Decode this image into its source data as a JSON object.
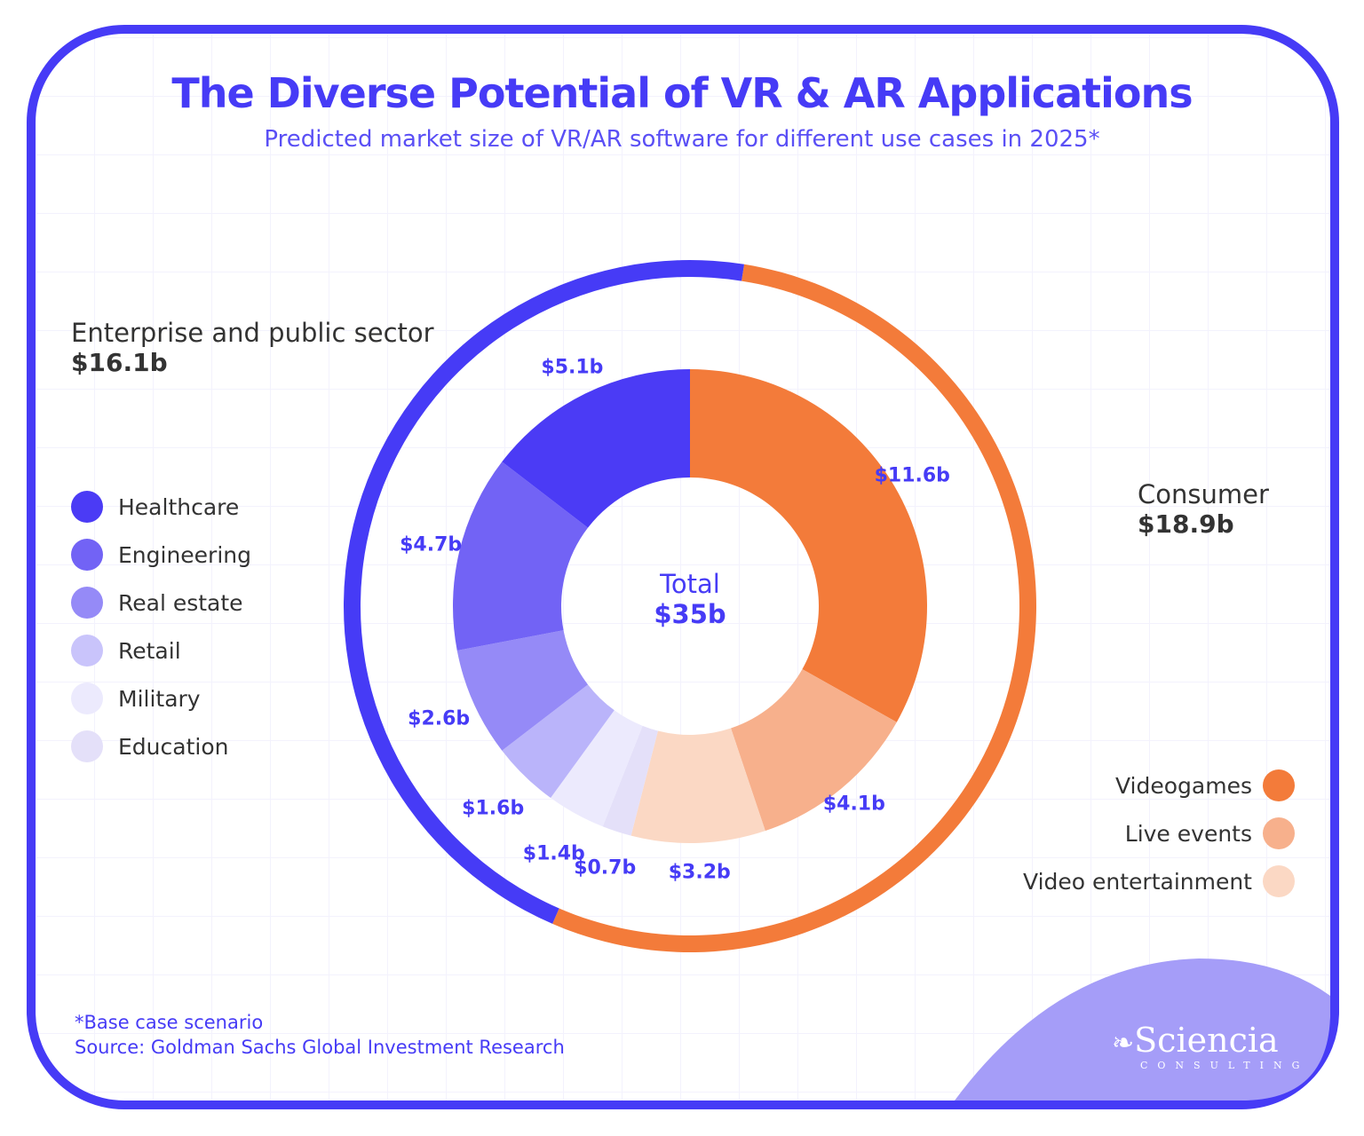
{
  "title": "The Diverse Potential of VR & AR Applications",
  "subtitle": "Predicted market size of VR/AR software for different use cases in 2025*",
  "groups": {
    "enterprise": {
      "label": "Enterprise and public sector",
      "value": "$16.1b",
      "color": "#463BF6"
    },
    "consumer": {
      "label": "Consumer",
      "value": "$18.9b",
      "color": "#F37B3A"
    }
  },
  "center": {
    "label": "Total",
    "value": "$35b"
  },
  "chart_data": {
    "type": "pie",
    "subtype": "nested-donut",
    "unit": "$ billion",
    "inner": [
      {
        "name": "Videogames",
        "value": 11.6,
        "label": "$11.6b",
        "color": "#F37B3A",
        "group": "consumer"
      },
      {
        "name": "Live events",
        "value": 4.1,
        "label": "$4.1b",
        "color": "#F7B08C",
        "group": "consumer"
      },
      {
        "name": "Video entertainment",
        "value": 3.2,
        "label": "$3.2b",
        "color": "#FBD8C4",
        "group": "consumer"
      },
      {
        "name": "Education",
        "value": 0.7,
        "label": "$0.7b",
        "color": "#E4E0F9",
        "group": "enterprise"
      },
      {
        "name": "Military",
        "value": 1.4,
        "label": "$1.4b",
        "color": "#ECEAFD",
        "group": "enterprise"
      },
      {
        "name": "Retail",
        "value": 1.6,
        "label": "$1.6b",
        "color": "#BAB4FA",
        "group": "enterprise"
      },
      {
        "name": "Real estate",
        "value": 2.6,
        "label": "$2.6b",
        "color": "#958AF7",
        "group": "enterprise"
      },
      {
        "name": "Engineering",
        "value": 4.7,
        "label": "$4.7b",
        "color": "#7263F5",
        "group": "enterprise"
      },
      {
        "name": "Healthcare",
        "value": 5.1,
        "label": "$5.1b",
        "color": "#4B3BF5",
        "group": "enterprise"
      }
    ],
    "outer": [
      {
        "name": "Consumer",
        "value": 18.9,
        "color": "#F37B3A"
      },
      {
        "name": "Enterprise and public sector",
        "value": 16.1,
        "color": "#463BF6"
      }
    ],
    "total": 35
  },
  "legend_left": [
    {
      "name": "Healthcare",
      "color": "#4B3BF5"
    },
    {
      "name": "Engineering",
      "color": "#7263F5"
    },
    {
      "name": "Real estate",
      "color": "#958AF7"
    },
    {
      "name": "Retail",
      "color": "#C9C4FB"
    },
    {
      "name": "Military",
      "color": "#ECEAFD"
    },
    {
      "name": "Education",
      "color": "#E4E0F9"
    }
  ],
  "legend_right": [
    {
      "name": "Videogames",
      "color": "#F37B3A"
    },
    {
      "name": "Live events",
      "color": "#F7B08C"
    },
    {
      "name": "Video entertainment",
      "color": "#FBD8C4"
    }
  ],
  "footnote": "*Base case scenario",
  "source": "Source: Goldman Sachs Global Investment Research",
  "logo": {
    "name": "Sciencia",
    "sub": "CONSULTING"
  }
}
